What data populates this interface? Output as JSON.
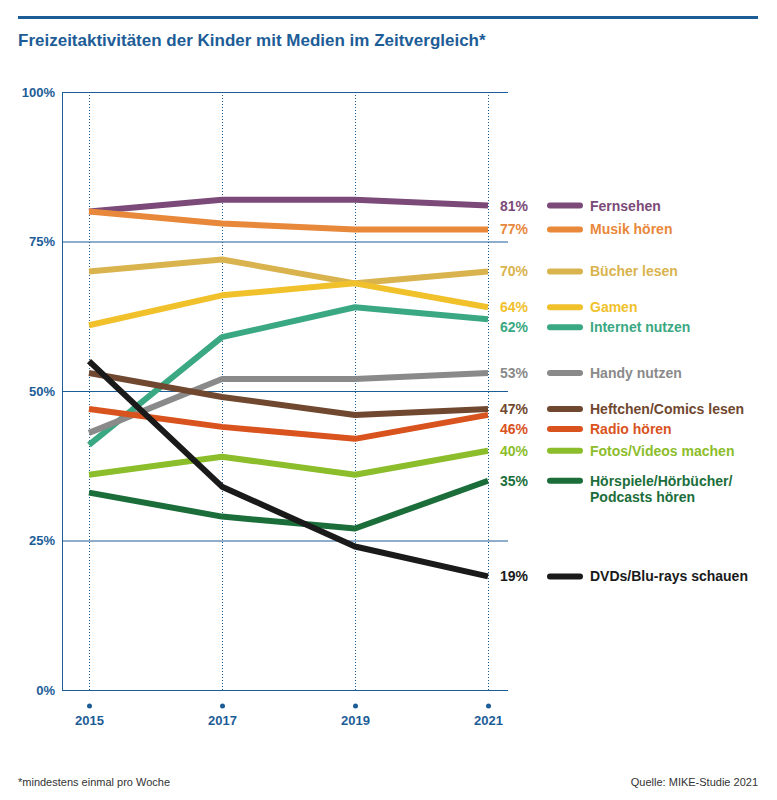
{
  "chart_data": {
    "type": "line",
    "title": "Freizeitaktivitäten der Kinder mit Medien im Zeitvergleich*",
    "footnote": "*mindestens einmal pro Woche",
    "source": "Quelle: MIKE-Studie 2021",
    "x": [
      2015,
      2017,
      2019,
      2021
    ],
    "xlim": [
      2015,
      2021
    ],
    "xticks": [
      2015,
      2017,
      2019,
      2021
    ],
    "ylim": [
      0,
      100
    ],
    "yticks": [
      {
        "value": 0,
        "label": "0%"
      },
      {
        "value": 25,
        "label": "25%"
      },
      {
        "value": 50,
        "label": "50%"
      },
      {
        "value": 75,
        "label": "75%"
      },
      {
        "value": 100,
        "label": "100%"
      }
    ],
    "grid": true,
    "series": [
      {
        "name": "Fernsehen",
        "color": "#7b4a78",
        "values": [
          80,
          82,
          82,
          81
        ],
        "value_labels": [
          null,
          null,
          null,
          "81%"
        ]
      },
      {
        "name": "Musik hören",
        "color": "#e8883a",
        "values": [
          80,
          78,
          77,
          77
        ],
        "value_labels": [
          null,
          null,
          null,
          "77%"
        ]
      },
      {
        "name": "Bücher lesen",
        "color": "#d9b34e",
        "values": [
          70,
          72,
          68,
          70
        ],
        "value_labels": [
          null,
          null,
          null,
          "70%"
        ]
      },
      {
        "name": "Gamen",
        "color": "#f0c12b",
        "values": [
          61,
          66,
          68,
          64
        ],
        "value_labels": [
          null,
          null,
          null,
          "64%"
        ]
      },
      {
        "name": "Internet nutzen",
        "color": "#3aa882",
        "values": [
          41,
          59,
          64,
          62
        ],
        "value_labels": [
          null,
          null,
          null,
          "62%"
        ]
      },
      {
        "name": "Handy nutzen",
        "color": "#8a8a8a",
        "values": [
          43,
          52,
          52,
          53
        ],
        "value_labels": [
          null,
          null,
          null,
          "53%"
        ]
      },
      {
        "name": "Heftchen/Comics lesen",
        "color": "#70472f",
        "values": [
          53,
          49,
          46,
          47
        ],
        "value_labels": [
          null,
          null,
          null,
          "47%"
        ]
      },
      {
        "name": "Radio hören",
        "color": "#d9531e",
        "values": [
          47,
          44,
          42,
          46
        ],
        "value_labels": [
          null,
          null,
          null,
          "46%"
        ]
      },
      {
        "name": "Fotos/Videos machen",
        "color": "#8cbd2b",
        "values": [
          36,
          39,
          36,
          40
        ],
        "value_labels": [
          null,
          null,
          null,
          "40%"
        ]
      },
      {
        "name": "Hörspiele/Hörbücher/Podcasts hören",
        "color": "#1b6e3a",
        "values": [
          33,
          29,
          27,
          35
        ],
        "value_labels": [
          null,
          null,
          null,
          "35%"
        ]
      },
      {
        "name": "DVDs/Blu-rays schauen",
        "color": "#1a1a1a",
        "values": [
          55,
          34,
          24,
          19
        ],
        "value_labels": [
          null,
          null,
          null,
          "19%"
        ]
      }
    ]
  }
}
